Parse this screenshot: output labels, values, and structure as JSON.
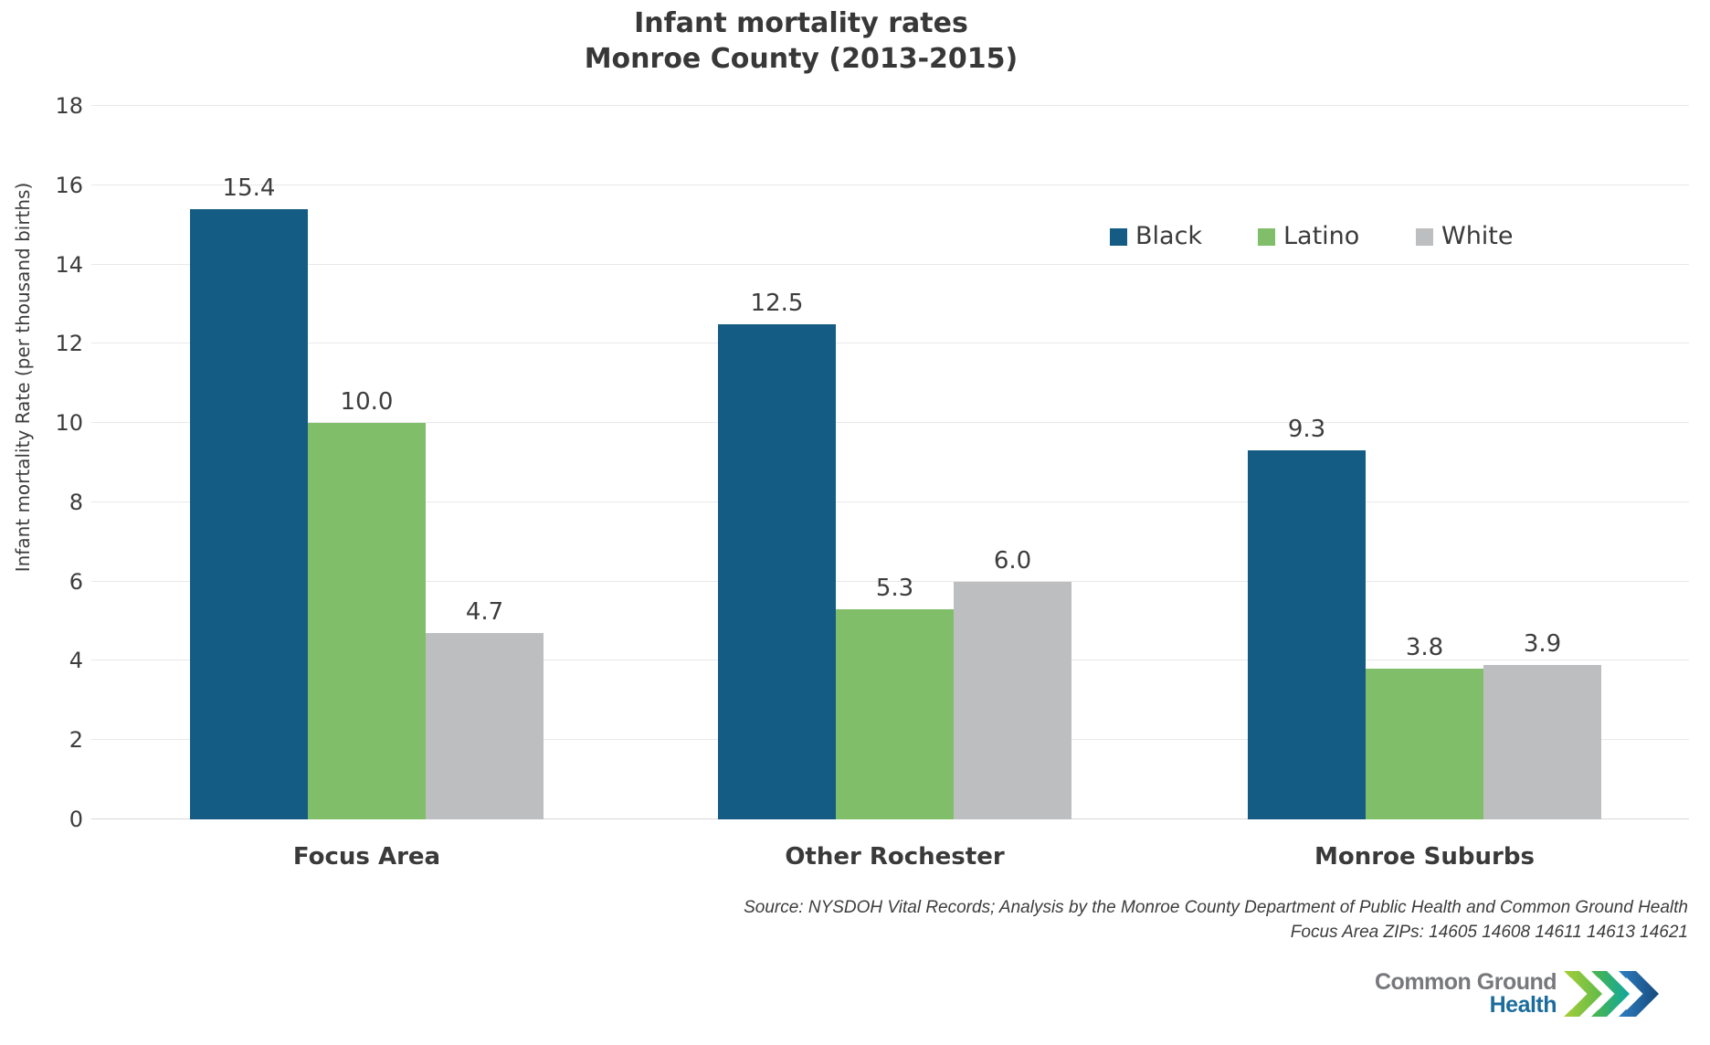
{
  "title": {
    "line1": "Infant mortality rates",
    "line2": "Monroe County (2013-2015)"
  },
  "y_axis": {
    "label": "Infant mortality Rate (per thousand births)"
  },
  "legend": [
    {
      "name": "Black",
      "color": "#145c83"
    },
    {
      "name": "Latino",
      "color": "#80be6a"
    },
    {
      "name": "White",
      "color": "#bdbec0"
    }
  ],
  "chart_data": {
    "type": "bar",
    "title": "Infant mortality rates Monroe County (2013-2015)",
    "ylabel": "Infant mortality Rate (per thousand births)",
    "categories": [
      "Focus Area",
      "Other Rochester",
      "Monroe Suburbs"
    ],
    "series": [
      {
        "name": "Black",
        "color": "#145c83",
        "values": [
          15.4,
          12.5,
          9.3
        ],
        "labels": [
          "15.4",
          "12.5",
          "9.3"
        ]
      },
      {
        "name": "Latino",
        "color": "#80be6a",
        "values": [
          10.0,
          5.3,
          3.8
        ],
        "labels": [
          "10.0",
          "5.3",
          "3.8"
        ]
      },
      {
        "name": "White",
        "color": "#bdbec0",
        "values": [
          4.7,
          6.0,
          3.9
        ],
        "labels": [
          "4.7",
          "6.0",
          "3.9"
        ]
      }
    ],
    "ylim": [
      0,
      18
    ],
    "yticks": [
      0,
      2,
      4,
      6,
      8,
      10,
      12,
      14,
      16,
      18
    ],
    "grid": true,
    "legend_position": "upper right inside plot"
  },
  "source": {
    "line1": "Source: NYSDOH Vital Records; Analysis by the Monroe County Department of Public Health and Common Ground Health",
    "line2": "Focus Area ZIPs: 14605 14608 14611 14613 14621"
  },
  "logo": {
    "line1": "Common Ground",
    "line2": "Health",
    "icon": "triple-chevron-right",
    "colors": {
      "text_gray": "#77787b",
      "text_blue": "#1c6c9c",
      "chevron_lime": "#a6ce39",
      "chevron_green": "#4fb648",
      "chevron_teal": "#0fa7a0",
      "chevron_blue": "#2e7fc2",
      "chevron_navy": "#174a7c"
    }
  }
}
